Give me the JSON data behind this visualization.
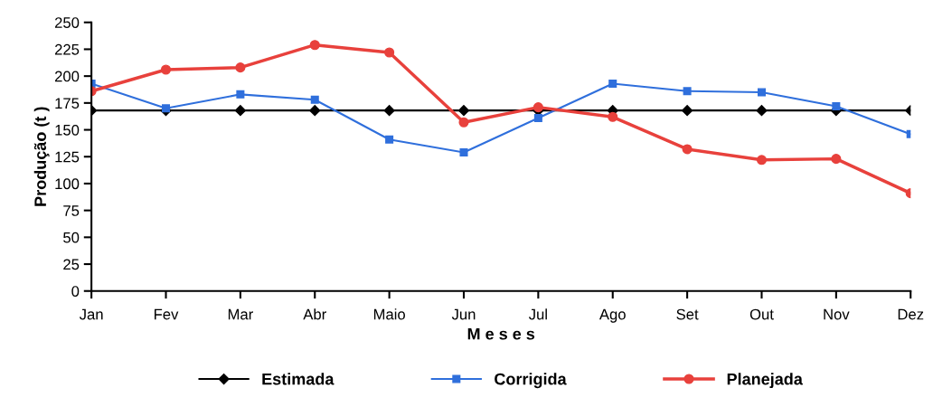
{
  "chart_data": {
    "type": "line",
    "xlabel": "M e s e s",
    "ylabel": "Produção (t )",
    "categories": [
      "Jan",
      "Fev",
      "Mar",
      "Abr",
      "Maio",
      "Jun",
      "Jul",
      "Ago",
      "Set",
      "Out",
      "Nov",
      "Dez"
    ],
    "series": [
      {
        "name": "Estimada",
        "color": "#000000",
        "marker": "diamond",
        "values": [
          168,
          168,
          168,
          168,
          168,
          168,
          168,
          168,
          168,
          168,
          168,
          168
        ]
      },
      {
        "name": "Corrigida",
        "color": "#2f6fdc",
        "marker": "square",
        "values": [
          193,
          170,
          183,
          178,
          141,
          129,
          161,
          193,
          186,
          185,
          172,
          146
        ]
      },
      {
        "name": "Planejada",
        "color": "#e8413c",
        "marker": "circle",
        "values": [
          186,
          206,
          208,
          229,
          222,
          157,
          171,
          162,
          132,
          122,
          123,
          91
        ]
      }
    ],
    "ylim": [
      0,
      250
    ],
    "yticks": [
      0,
      25,
      50,
      75,
      100,
      125,
      150,
      175,
      200,
      225,
      250
    ],
    "grid": false,
    "legend": "bottom"
  }
}
